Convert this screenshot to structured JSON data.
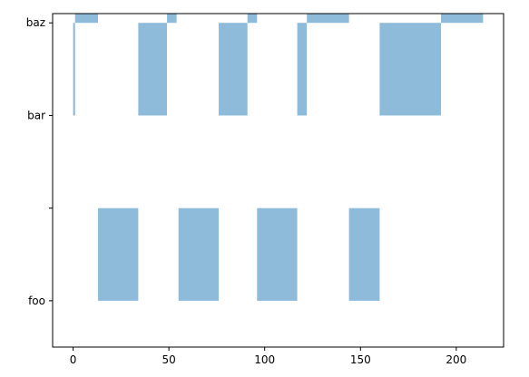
{
  "chart_data": {
    "type": "bar",
    "orientation": "vertical-step-stack",
    "title": "",
    "xlabel": "",
    "ylabel": "",
    "xlim": [
      -10.7,
      224.7
    ],
    "ylim": [
      -0.5,
      3.1
    ],
    "x_ticks": [
      0,
      50,
      100,
      150,
      200
    ],
    "x_tick_labels": [
      "0",
      "50",
      "100",
      "150",
      "200"
    ],
    "y_ticks": [
      0,
      1,
      2,
      3
    ],
    "y_tick_labels": [
      "foo",
      "",
      "bar",
      "baz"
    ],
    "grid": false,
    "legend": "none",
    "bar_color": "#8fbbda",
    "bars": [
      {
        "x0": 13,
        "x1": 34,
        "bottom": 0,
        "top": 1
      },
      {
        "x0": 55,
        "x1": 76,
        "bottom": 0,
        "top": 1
      },
      {
        "x0": 96,
        "x1": 117,
        "bottom": 0,
        "top": 1
      },
      {
        "x0": 144,
        "x1": 160,
        "bottom": 0,
        "top": 1
      },
      {
        "x0": 0,
        "x1": 1,
        "bottom": 2,
        "top": 3
      },
      {
        "x0": 34,
        "x1": 49,
        "bottom": 2,
        "top": 3
      },
      {
        "x0": 76,
        "x1": 91,
        "bottom": 2,
        "top": 3
      },
      {
        "x0": 117,
        "x1": 122,
        "bottom": 2,
        "top": 3
      },
      {
        "x0": 160,
        "x1": 192,
        "bottom": 2,
        "top": 3
      },
      {
        "x0": 1,
        "x1": 13,
        "bottom": 3,
        "top": 4
      },
      {
        "x0": 49,
        "x1": 54,
        "bottom": 3,
        "top": 4
      },
      {
        "x0": 91,
        "x1": 96,
        "bottom": 3,
        "top": 4
      },
      {
        "x0": 122,
        "x1": 144,
        "bottom": 3,
        "top": 4
      },
      {
        "x0": 192,
        "x1": 214,
        "bottom": 3,
        "top": 4
      }
    ]
  }
}
